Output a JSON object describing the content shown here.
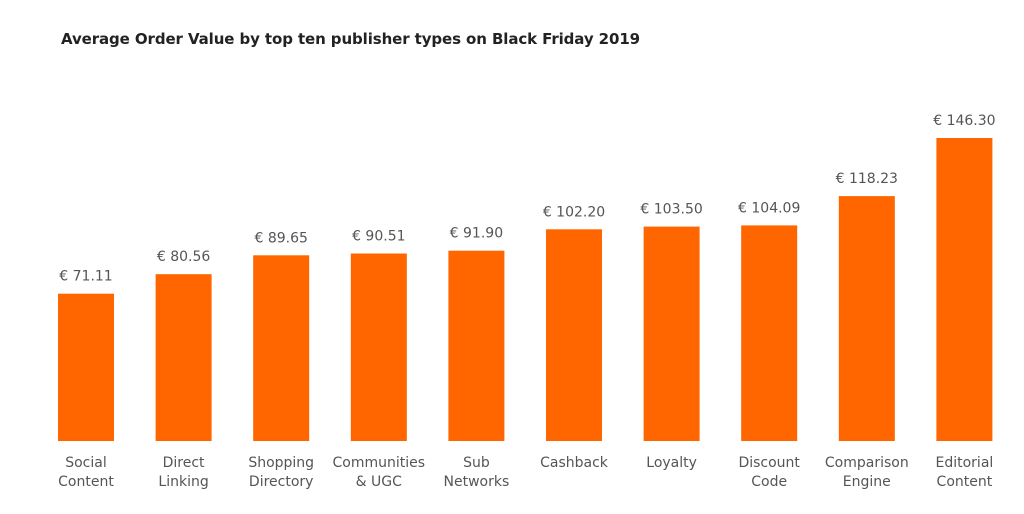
{
  "chart_data": {
    "type": "bar",
    "title": "Average Order Value by top ten publisher types on Black Friday 2019",
    "xlabel": "",
    "ylabel": "",
    "grid": false,
    "legend": "none",
    "value_prefix": "€ ",
    "bar_color": "#ff6600",
    "categories": [
      [
        "Social",
        "Content"
      ],
      [
        "Direct",
        "Linking"
      ],
      [
        "Shopping",
        "Directory"
      ],
      [
        "Communities",
        "& UGC"
      ],
      [
        "Sub",
        "Networks"
      ],
      [
        "Cashback"
      ],
      [
        "Loyalty"
      ],
      [
        "Discount",
        "Code"
      ],
      [
        "Comparison",
        "Engine"
      ],
      [
        "Editorial",
        "Content"
      ]
    ],
    "values": [
      71.11,
      80.56,
      89.65,
      90.51,
      91.9,
      102.2,
      103.5,
      104.09,
      118.23,
      146.3
    ],
    "value_labels": [
      "€ 71.11",
      "€ 80.56",
      "€ 89.65",
      "€ 90.51",
      "€ 91.90",
      "€ 102.20",
      "€ 103.50",
      "€ 104.09",
      "€ 118.23",
      "€ 146.30"
    ]
  }
}
